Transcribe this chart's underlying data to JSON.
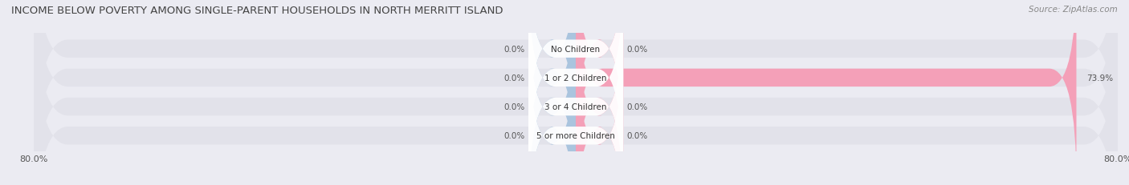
{
  "title": "INCOME BELOW POVERTY AMONG SINGLE-PARENT HOUSEHOLDS IN NORTH MERRITT ISLAND",
  "source": "Source: ZipAtlas.com",
  "categories": [
    "No Children",
    "1 or 2 Children",
    "3 or 4 Children",
    "5 or more Children"
  ],
  "single_father": [
    0.0,
    0.0,
    0.0,
    0.0
  ],
  "single_mother": [
    0.0,
    73.9,
    0.0,
    0.0
  ],
  "father_color": "#aac4de",
  "mother_color": "#f4a0b8",
  "bar_bg_color": "#e2e2ea",
  "bg_color": "#ebebf2",
  "axis_min": -80.0,
  "axis_max": 80.0,
  "title_fontsize": 9.5,
  "label_fontsize": 7.5,
  "tick_fontsize": 8,
  "source_fontsize": 7.5,
  "legend_fontsize": 8
}
